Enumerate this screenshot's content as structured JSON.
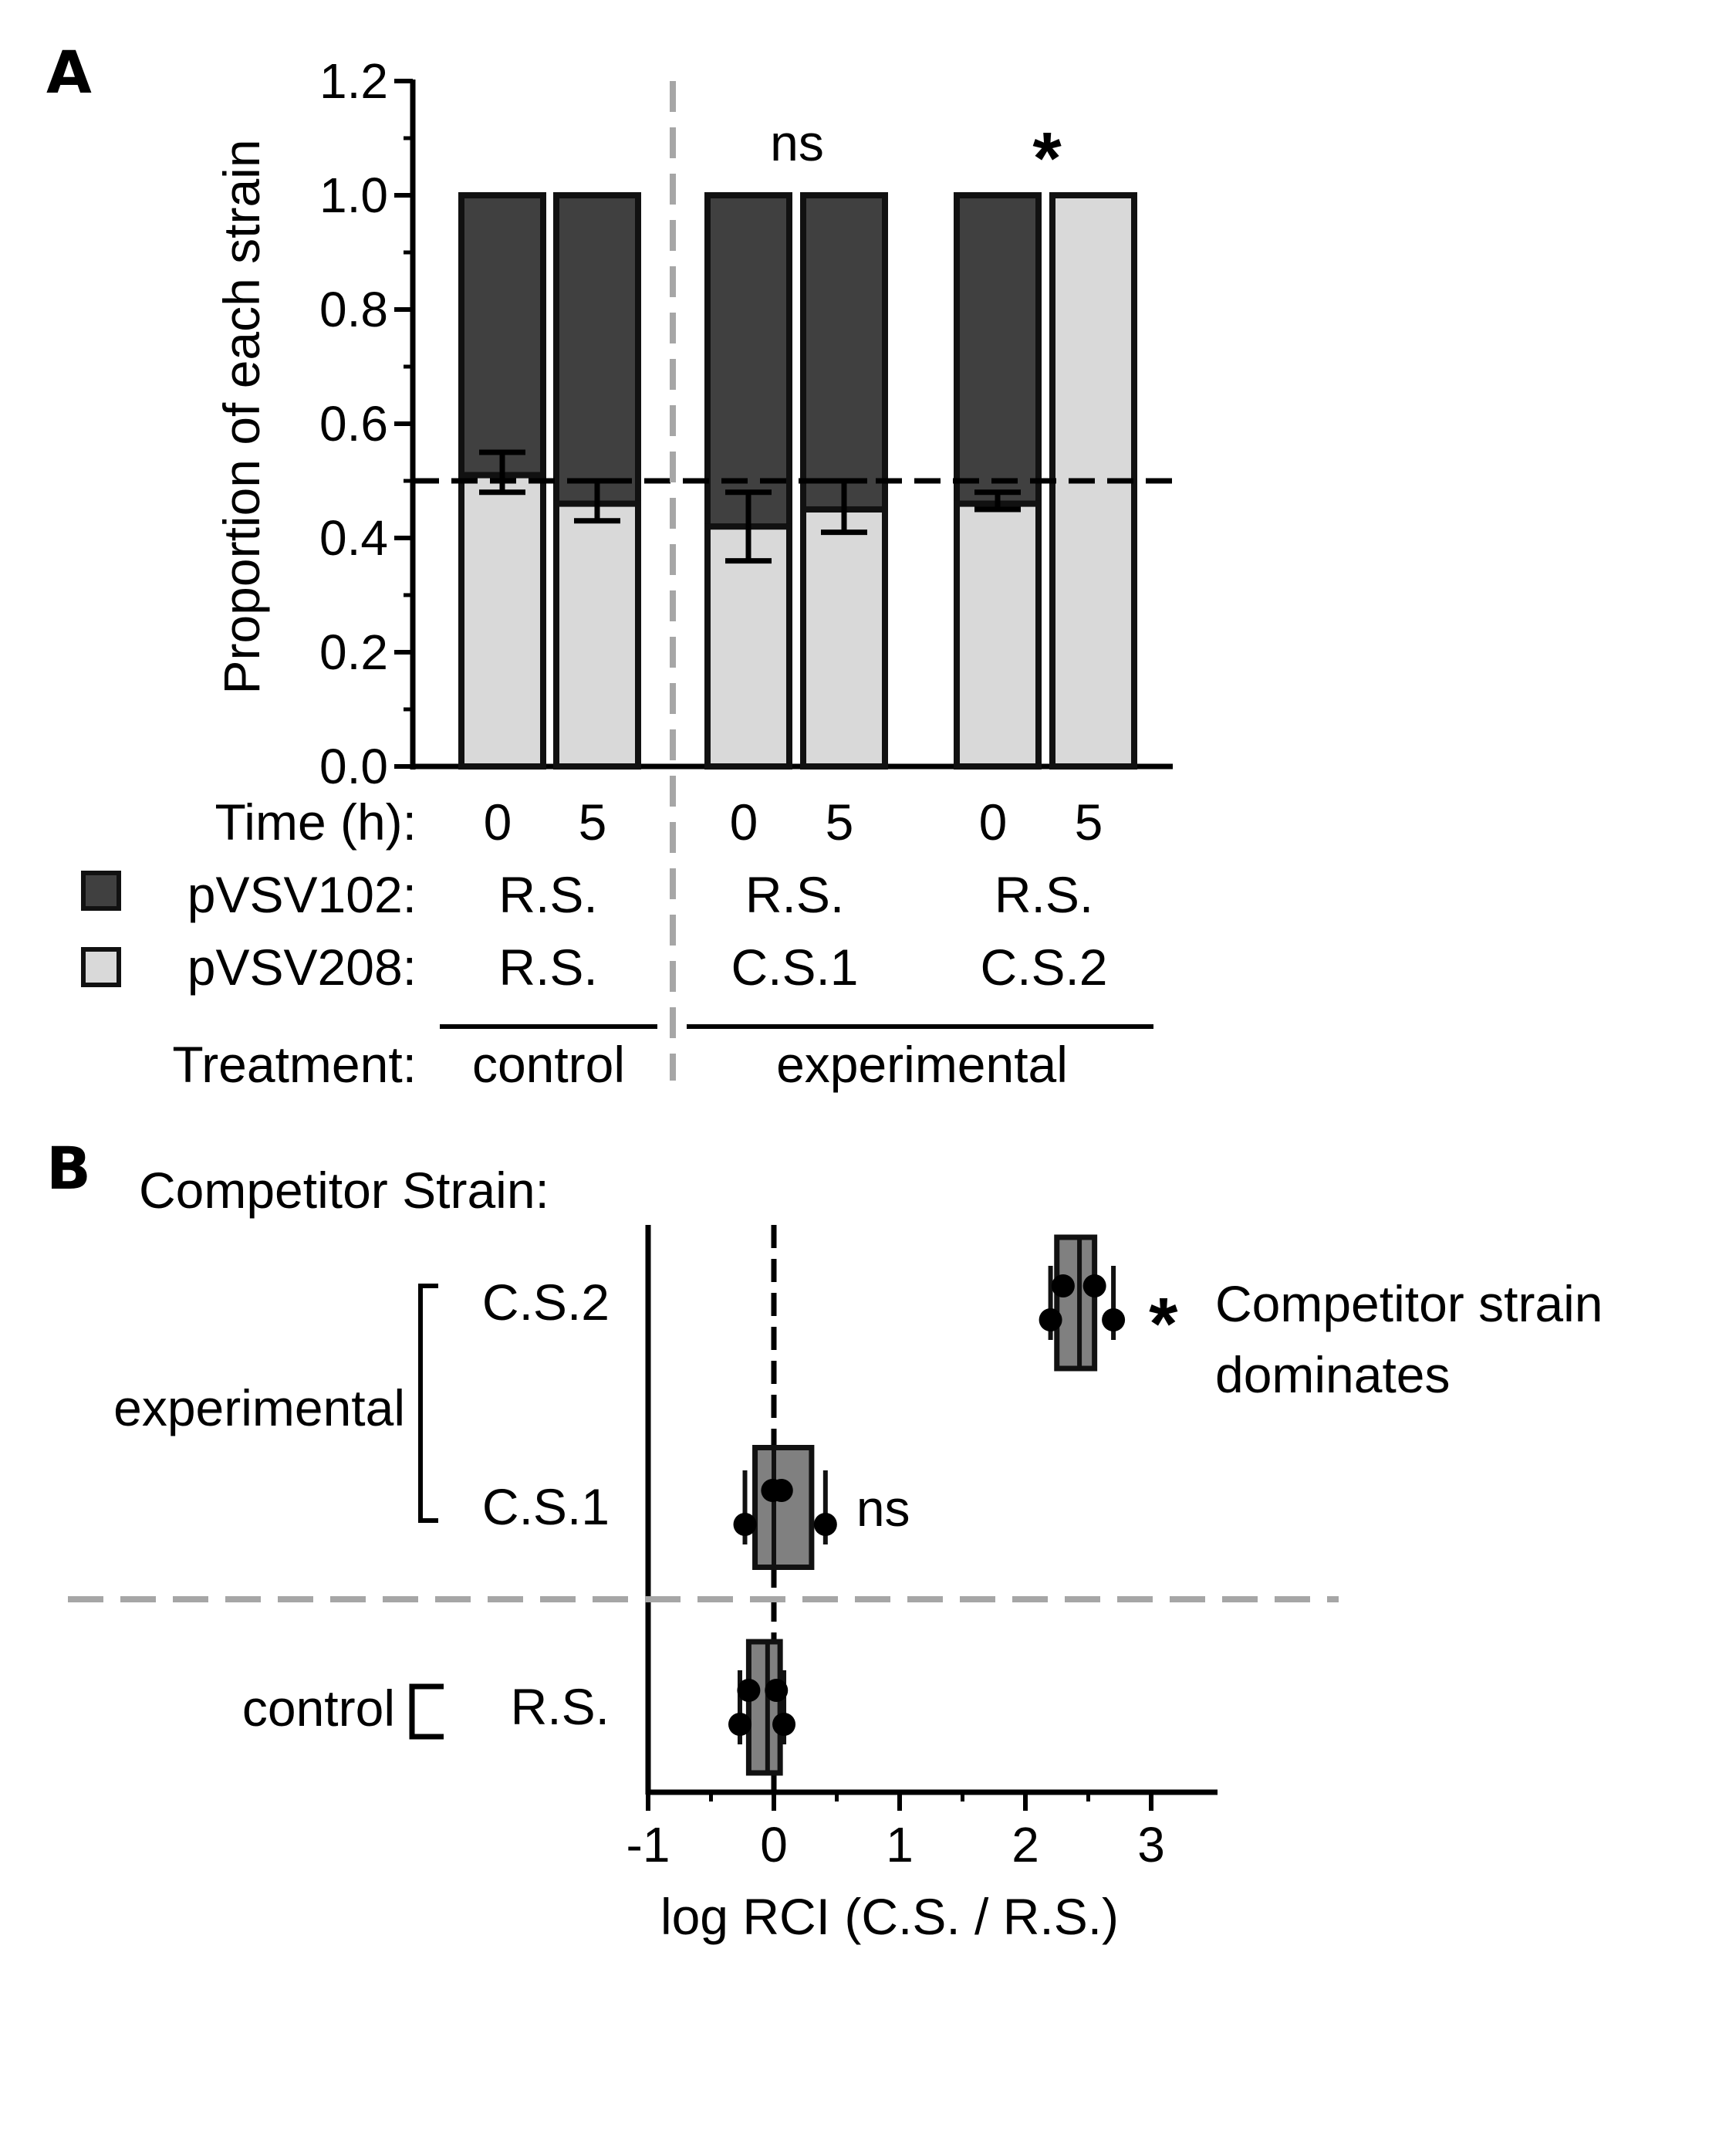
{
  "colors": {
    "pvsv102": "#404040",
    "pvsv208": "#d9d9d9",
    "rci_box": "#808080",
    "reference_line": "#000000",
    "separator": "#a6a6a6"
  },
  "chart_data": [
    {
      "panel": "A",
      "type": "bar",
      "stacked": true,
      "ylabel": "Proportion of each strain",
      "ylim": [
        0,
        1.2
      ],
      "yticks": [
        "0.0",
        "0.2",
        "0.4",
        "0.6",
        "0.8",
        "1.0",
        "1.2"
      ],
      "reference_line": 0.5,
      "row_labels": {
        "time": "Time (h):",
        "pvsv102": "pVSV102:",
        "pvsv208": "pVSV208:",
        "treatment": "Treatment:"
      },
      "groups": [
        {
          "treatment": "control",
          "pvsv102": "R.S.",
          "pvsv208": "R.S.",
          "annotation": "",
          "bars": [
            {
              "time": "0",
              "pvsv208": 0.51,
              "pvsv102": 0.49,
              "error": [
                0.48,
                0.55
              ]
            },
            {
              "time": "5",
              "pvsv208": 0.46,
              "pvsv102": 0.54,
              "error": [
                0.43,
                0.5
              ]
            }
          ]
        },
        {
          "treatment": "experimental",
          "pvsv102": "R.S.",
          "pvsv208": "C.S.1",
          "annotation": "ns",
          "bars": [
            {
              "time": "0",
              "pvsv208": 0.42,
              "pvsv102": 0.58,
              "error": [
                0.36,
                0.48
              ]
            },
            {
              "time": "5",
              "pvsv208": 0.45,
              "pvsv102": 0.55,
              "error": [
                0.41,
                0.5
              ]
            }
          ]
        },
        {
          "treatment": "experimental",
          "pvsv102": "R.S.",
          "pvsv208": "C.S.2",
          "annotation": "*",
          "bars": [
            {
              "time": "0",
              "pvsv208": 0.46,
              "pvsv102": 0.54,
              "error": [
                0.45,
                0.48
              ]
            },
            {
              "time": "5",
              "pvsv208": 1.0,
              "pvsv102": 0.0,
              "error": null
            }
          ]
        }
      ],
      "treatment_labels": [
        "control",
        "experimental"
      ]
    },
    {
      "panel": "B",
      "type": "box",
      "orientation": "horizontal",
      "title": "Competitor Strain:",
      "xlabel": "log RCI (C.S. / R.S.)",
      "xlim": [
        -1,
        3.5
      ],
      "xticks": [
        "-1",
        "0",
        "1",
        "2",
        "3"
      ],
      "reference_line": 0,
      "brackets": {
        "experimental": "experimental",
        "control": "control"
      },
      "rows": [
        {
          "label": "C.S.2",
          "group": "experimental",
          "box": [
            2.25,
            2.55
          ],
          "median": 2.43,
          "whisker": [
            2.2,
            2.7
          ],
          "points": [
            2.2,
            2.3,
            2.55,
            2.7
          ],
          "annotation": "*",
          "note": [
            "Competitor strain",
            "dominates"
          ]
        },
        {
          "label": "C.S.1",
          "group": "experimental",
          "box": [
            -0.15,
            0.3
          ],
          "median": 0.0,
          "whisker": [
            -0.23,
            0.41
          ],
          "points": [
            -0.23,
            -0.01,
            0.06,
            0.41
          ],
          "annotation": "ns",
          "note": []
        },
        {
          "label": "R.S.",
          "group": "control",
          "box": [
            -0.2,
            0.05
          ],
          "median": -0.05,
          "whisker": [
            -0.27,
            0.08
          ],
          "points": [
            -0.27,
            -0.2,
            0.02,
            0.08
          ],
          "annotation": "",
          "note": []
        }
      ]
    }
  ],
  "panel_letters": {
    "a": "A",
    "b": "B"
  }
}
